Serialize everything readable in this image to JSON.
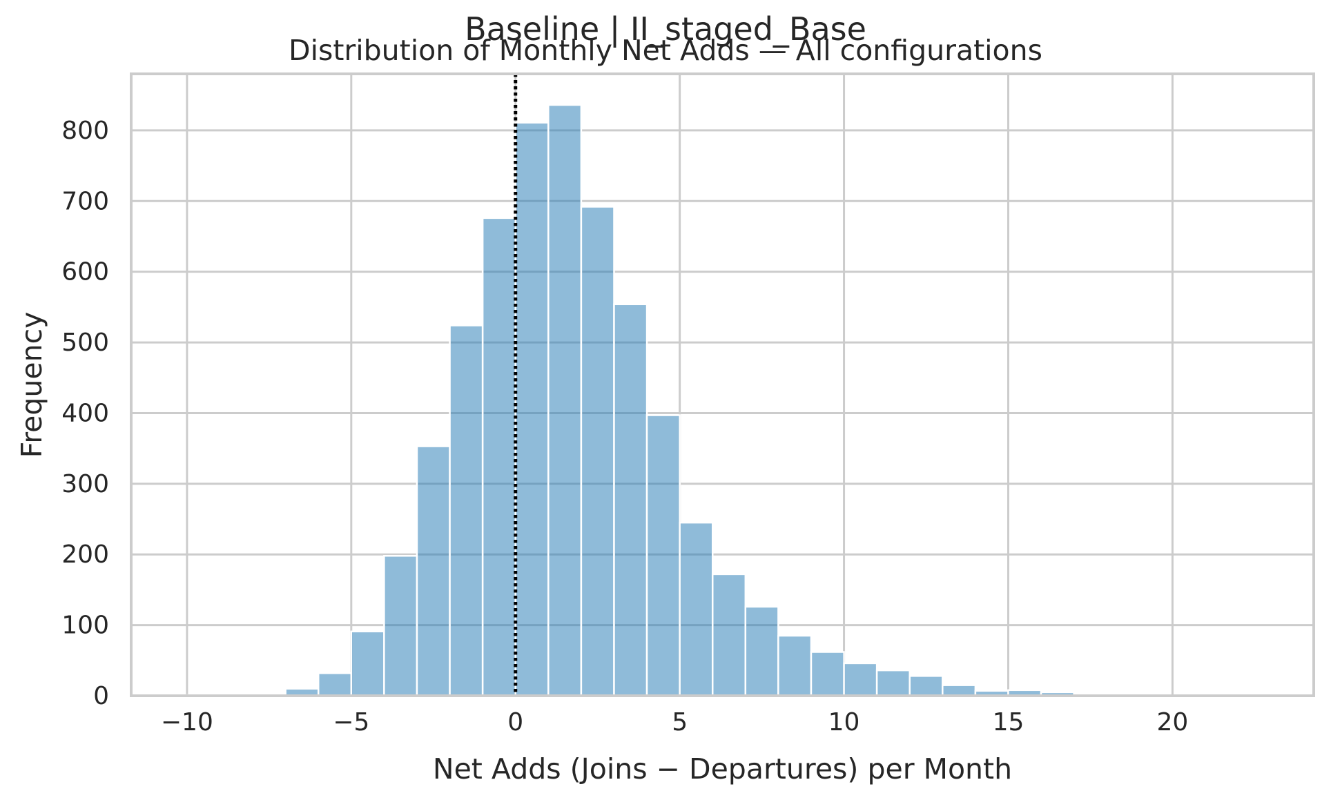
{
  "chart_data": {
    "type": "bar",
    "suptitle": "Baseline | II_staged_Base",
    "title": "Distribution of Monthly Net Adds — All configurations",
    "xlabel": "Net Adds (Joins − Departures) per Month",
    "ylabel": "Frequency",
    "xlim": [
      -11.7,
      24.3
    ],
    "ylim": [
      0,
      880
    ],
    "xticks": [
      -10,
      -5,
      0,
      5,
      10,
      15,
      20
    ],
    "xtick_labels": [
      "−10",
      "−5",
      "0",
      "5",
      "10",
      "15",
      "20"
    ],
    "yticks": [
      0,
      100,
      200,
      300,
      400,
      500,
      600,
      700,
      800
    ],
    "ytick_labels": [
      "0",
      "100",
      "200",
      "300",
      "400",
      "500",
      "600",
      "700",
      "800"
    ],
    "grid": true,
    "bin_edges": [
      -10,
      -9,
      -8,
      -7,
      -6,
      -5,
      -4,
      -3,
      -2,
      -1,
      0,
      1,
      2,
      3,
      4,
      5,
      6,
      7,
      8,
      9,
      10,
      11,
      12,
      13,
      14,
      15,
      16,
      17,
      18,
      19,
      20,
      21,
      22,
      23
    ],
    "values": [
      1,
      3,
      3,
      10,
      32,
      91,
      198,
      353,
      524,
      676,
      811,
      836,
      692,
      554,
      397,
      245,
      172,
      126,
      85,
      62,
      46,
      36,
      28,
      15,
      7,
      8,
      5,
      1,
      0,
      0,
      0,
      0,
      1
    ],
    "bar_color": "#1f77b4",
    "reference_line": {
      "x": 0,
      "style": "dotted",
      "color": "#000000"
    }
  }
}
